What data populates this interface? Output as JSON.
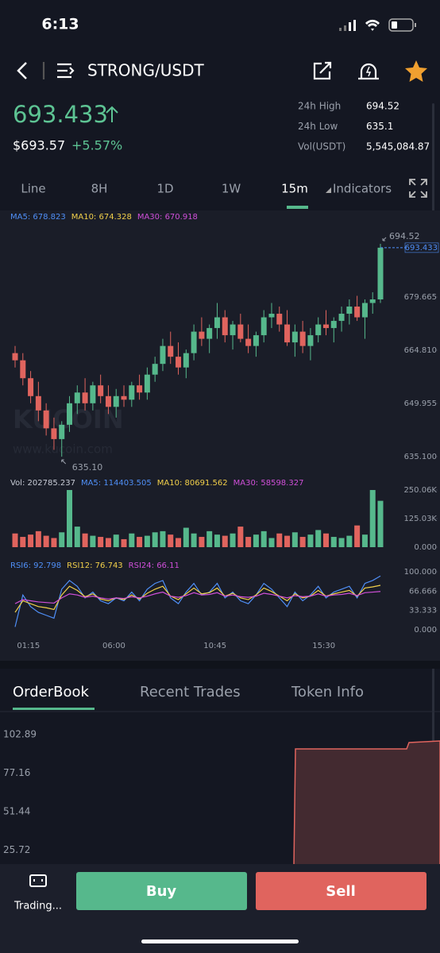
{
  "status_bar": {
    "time": "6:13"
  },
  "header": {
    "pair": "STRONG/USDT"
  },
  "price": {
    "last": "693.433",
    "fiat": "$693.57",
    "change": "+5.57%"
  },
  "stats": [
    {
      "label": "24h High",
      "value": "694.52"
    },
    {
      "label": "24h Low",
      "value": "635.1"
    },
    {
      "label": "Vol(USDT)",
      "value": "5,545,084.87"
    }
  ],
  "tabs": [
    "Line",
    "8H",
    "1D",
    "1W",
    "15m",
    "Indicators"
  ],
  "chart_data": [
    {
      "type": "candlestick",
      "up_color": "#56b88c",
      "down_color": "#e0645e",
      "legend": [
        {
          "text": "MA5: 678.823",
          "color": "#4f8ff7"
        },
        {
          "text": "MA10: 674.328",
          "color": "#f2d04a"
        },
        {
          "text": "MA30: 670.918",
          "color": "#d04fd9"
        }
      ],
      "watermark": "KUCOIN",
      "watermark_url": "www.kucoin.com",
      "open": [
        664,
        662,
        657,
        652,
        648,
        643,
        640,
        644,
        650,
        653,
        650,
        655,
        652,
        649,
        652,
        651,
        655,
        653,
        658,
        661,
        666,
        663,
        660,
        664,
        670,
        668,
        671,
        674,
        669,
        672,
        668,
        666,
        669,
        674,
        675,
        672,
        667,
        670,
        666,
        669,
        672,
        671,
        673,
        675,
        677,
        674,
        678,
        679
      ],
      "high": [
        666,
        664,
        659,
        656,
        650,
        646,
        645,
        652,
        655,
        657,
        656,
        658,
        655,
        654,
        655,
        656,
        658,
        660,
        663,
        668,
        670,
        667,
        665,
        672,
        674,
        672,
        678,
        676,
        673,
        675,
        672,
        670,
        676,
        678,
        677,
        676,
        672,
        673,
        671,
        674,
        676,
        674,
        677,
        679,
        680,
        679,
        681,
        694.52
      ],
      "low": [
        660,
        655,
        650,
        645,
        641,
        637,
        635.1,
        642,
        647,
        648,
        648,
        650,
        647,
        646,
        649,
        649,
        651,
        651,
        656,
        659,
        661,
        658,
        657,
        662,
        666,
        664,
        668,
        667,
        665,
        667,
        664,
        663,
        667,
        671,
        670,
        666,
        663,
        664,
        662,
        667,
        669,
        667,
        670,
        672,
        673,
        668,
        675,
        678
      ],
      "close": [
        662,
        657,
        652,
        648,
        643,
        640,
        644,
        650,
        653,
        650,
        655,
        652,
        649,
        652,
        651,
        655,
        653,
        658,
        661,
        666,
        663,
        660,
        664,
        670,
        668,
        671,
        674,
        669,
        672,
        668,
        666,
        669,
        674,
        675,
        672,
        667,
        670,
        666,
        669,
        672,
        671,
        673,
        675,
        677,
        674,
        678,
        679,
        693.433
      ],
      "ylim": [
        635.1,
        694.52
      ],
      "yticks": [
        {
          "value": 635.1,
          "label": "635.100"
        },
        649.955,
        {
          "value": 664.81,
          "label": "664.810"
        },
        679.665
      ],
      "high_marker": {
        "value": 694.52,
        "label": "694.52"
      },
      "last_marker": {
        "value": 693.433,
        "label": "693.433"
      },
      "low_marker": {
        "value": 635.1,
        "label": "635.10"
      }
    },
    {
      "type": "bar",
      "legend": [
        {
          "text": "Vol: 202785.237",
          "color": "#c8ccd6"
        },
        {
          "text": "MA5: 114403.505",
          "color": "#4f8ff7"
        },
        {
          "text": "MA10: 80691.562",
          "color": "#f2d04a"
        },
        {
          "text": "MA30: 58598.327",
          "color": "#d04fd9"
        }
      ],
      "values": [
        60000,
        45000,
        55000,
        70000,
        50000,
        40000,
        65000,
        250000,
        90000,
        60000,
        50000,
        45000,
        40000,
        55000,
        35000,
        60000,
        45000,
        50000,
        65000,
        70000,
        55000,
        40000,
        85000,
        60000,
        45000,
        70000,
        55000,
        50000,
        60000,
        90000,
        45000,
        55000,
        70000,
        40000,
        60000,
        50000,
        65000,
        45000,
        55000,
        75000,
        60000,
        45000,
        40000,
        50000,
        95000,
        55000,
        250000,
        202785.237
      ],
      "ylim": [
        0,
        250060
      ],
      "yticks": [
        {
          "value": 0,
          "label": "0.000"
        },
        {
          "value": 125030,
          "label": "125.03K"
        },
        {
          "value": 250060,
          "label": "250.06K"
        }
      ]
    },
    {
      "type": "line",
      "legend": [
        {
          "text": "RSI6: 92.798",
          "color": "#4f8ff7"
        },
        {
          "text": "RSI12: 76.743",
          "color": "#f2d04a"
        },
        {
          "text": "RSI24: 66.11",
          "color": "#d04fd9"
        }
      ],
      "categories": [
        null,
        "01:15",
        null,
        null,
        null,
        null,
        null,
        null,
        null,
        null,
        null,
        null,
        "06:00",
        null,
        null,
        null,
        null,
        null,
        null,
        null,
        null,
        null,
        null,
        null,
        null,
        "10:45",
        null,
        null,
        null,
        null,
        null,
        null,
        null,
        null,
        null,
        null,
        null,
        null,
        null,
        "15:30",
        null,
        null,
        null,
        null,
        null,
        null,
        null,
        null
      ],
      "series": [
        {
          "color": "#4f8ff7",
          "values": [
            5,
            60,
            40,
            30,
            25,
            20,
            70,
            85,
            75,
            55,
            65,
            50,
            45,
            55,
            50,
            65,
            50,
            70,
            80,
            85,
            55,
            45,
            65,
            80,
            60,
            65,
            80,
            55,
            65,
            50,
            45,
            60,
            80,
            70,
            55,
            40,
            65,
            50,
            60,
            75,
            55,
            65,
            70,
            75,
            55,
            80,
            85,
            92.798
          ]
        },
        {
          "color": "#f2d04a",
          "values": [
            30,
            50,
            45,
            40,
            38,
            35,
            60,
            75,
            68,
            57,
            62,
            53,
            50,
            55,
            52,
            60,
            53,
            63,
            70,
            75,
            58,
            52,
            62,
            72,
            62,
            64,
            72,
            58,
            63,
            55,
            52,
            60,
            72,
            66,
            58,
            50,
            62,
            55,
            58,
            68,
            58,
            62,
            65,
            68,
            58,
            72,
            74,
            76.743
          ]
        },
        {
          "color": "#d04fd9",
          "values": [
            45,
            52,
            50,
            48,
            47,
            46,
            55,
            62,
            60,
            56,
            58,
            55,
            53,
            55,
            54,
            57,
            55,
            58,
            62,
            65,
            58,
            56,
            59,
            64,
            60,
            61,
            64,
            58,
            60,
            57,
            56,
            58,
            63,
            61,
            58,
            55,
            59,
            57,
            58,
            62,
            58,
            60,
            61,
            63,
            59,
            64,
            65,
            66.11
          ]
        }
      ],
      "ylim": [
        0,
        100
      ],
      "yticks": [
        {
          "value": 0,
          "label": "0.000"
        },
        {
          "value": 33.333,
          "label": "33.333"
        },
        {
          "value": 66.666,
          "label": "66.666"
        },
        {
          "value": 100,
          "label": "100.000"
        }
      ]
    }
  ],
  "orderbook": {
    "tabs": [
      "OrderBook",
      "Recent Trades",
      "Token Info"
    ],
    "yticks": [
      "102.89",
      "77.16",
      "51.44",
      "25.72"
    ]
  },
  "actions": {
    "trading": "Trading...",
    "buy": "Buy",
    "sell": "Sell"
  }
}
